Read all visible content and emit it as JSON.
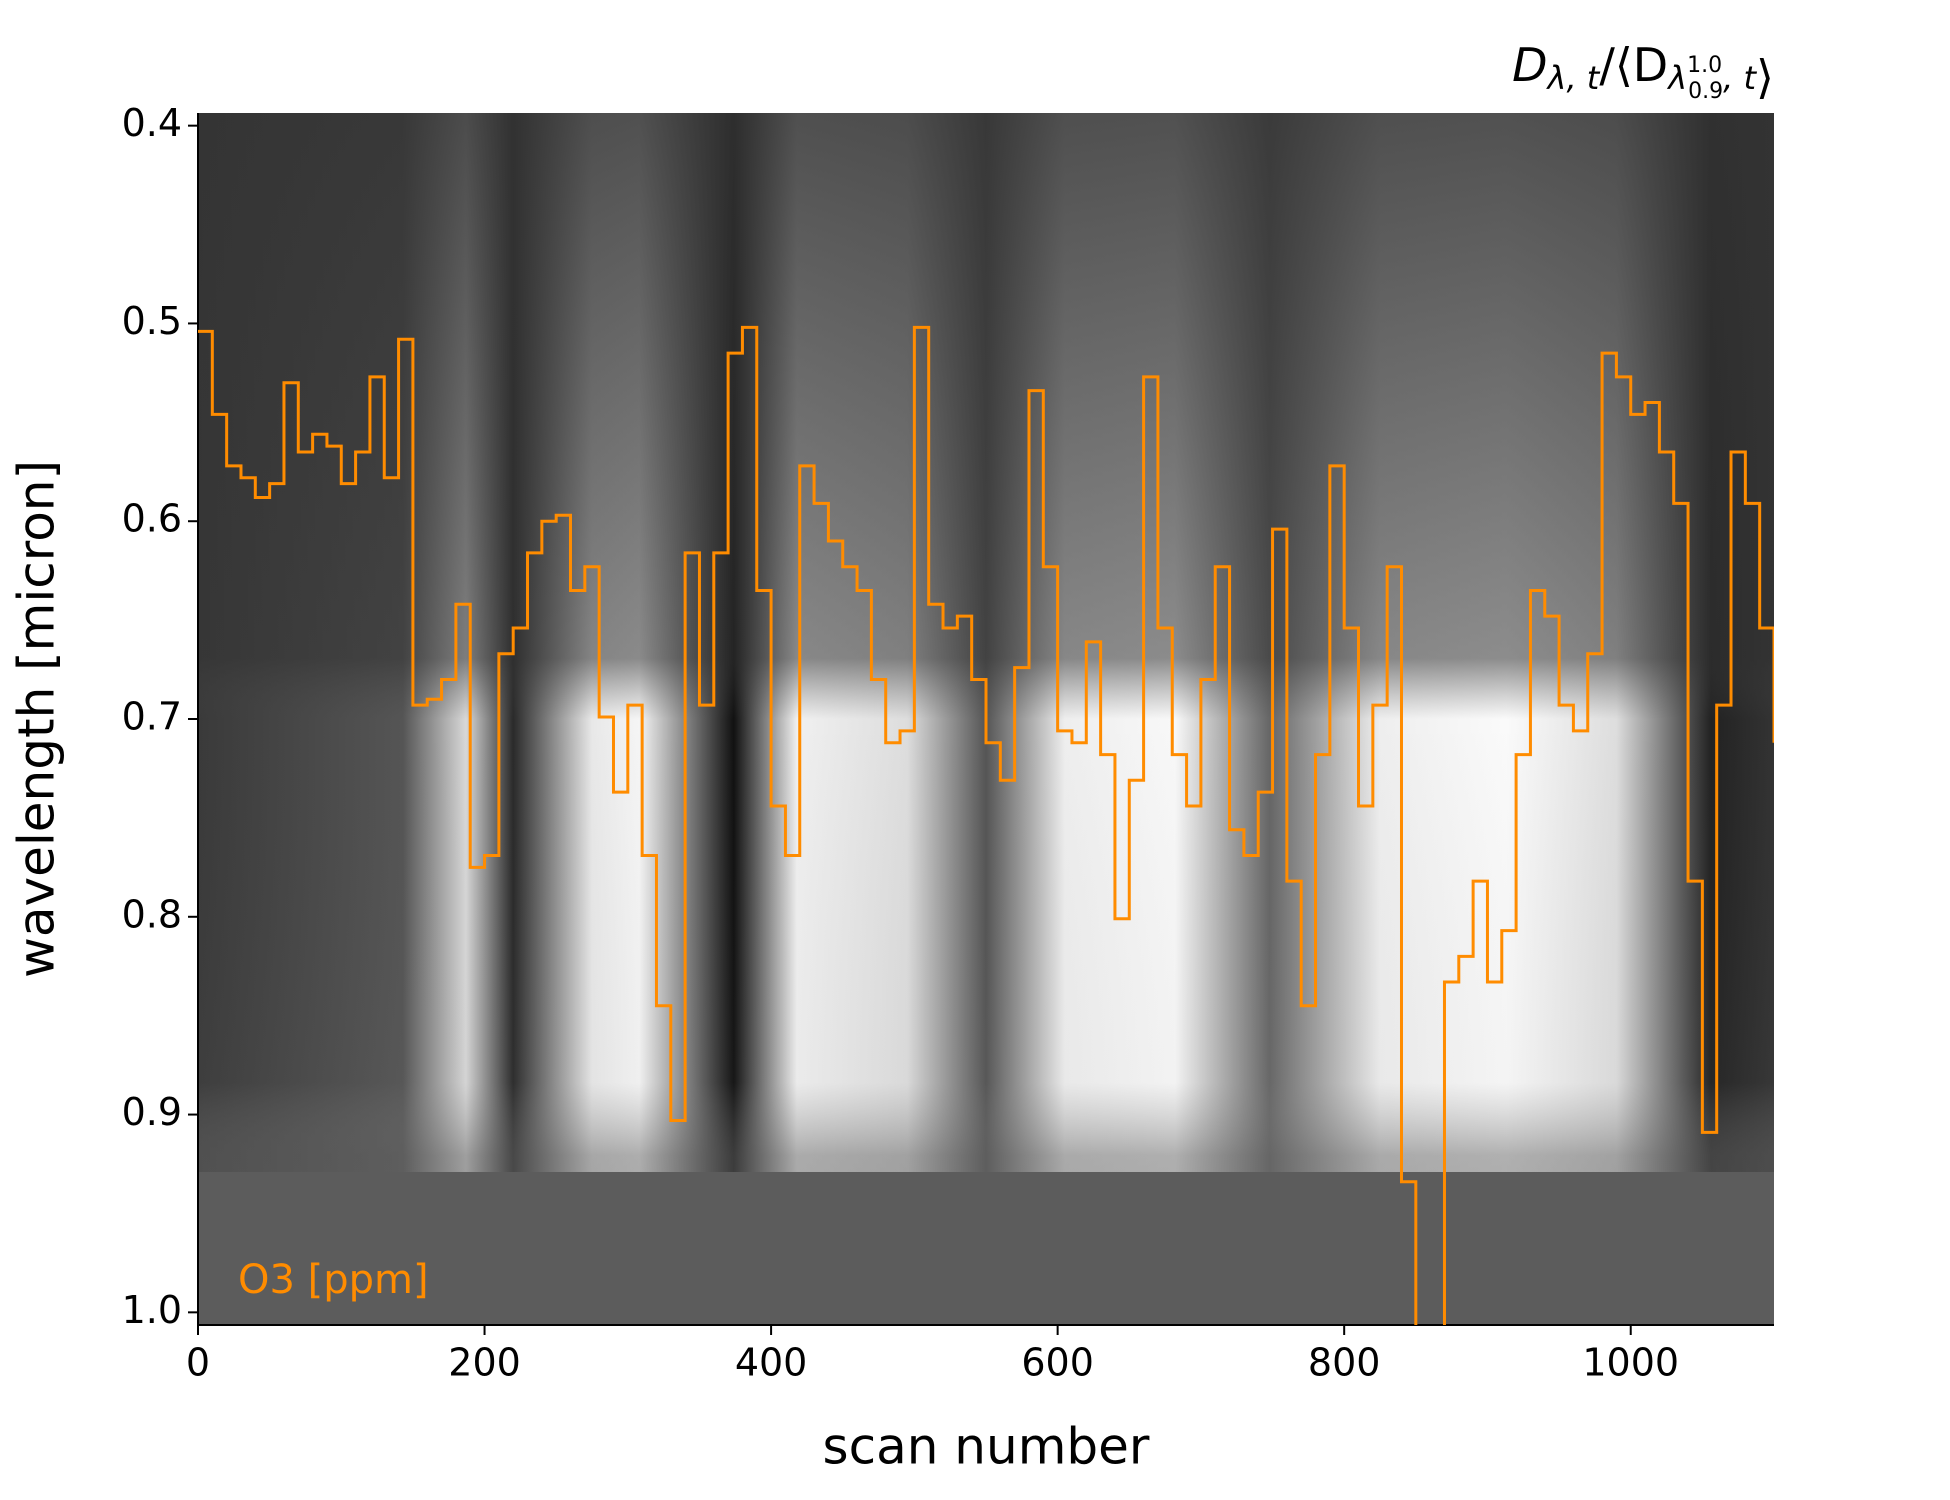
{
  "chart_data": {
    "type": "step",
    "title": [
      "D",
      "λ, t",
      "/⟨D",
      "λ",
      "1.0",
      "0.9",
      ", t",
      "⟩"
    ],
    "xlabel": "scan number",
    "ylabel": "wavelength [micron]",
    "annotation": "O3 [ppm]",
    "xlim": [
      0,
      1100
    ],
    "xticks": [
      0,
      200,
      400,
      600,
      800,
      1000
    ],
    "ylim": [
      0.3936,
      1.0064
    ],
    "y_inverted": true,
    "yticks": [
      0.4,
      0.5,
      0.6,
      0.7,
      0.8,
      0.9,
      {
        "value": 1.0,
        "label": "1.0"
      }
    ],
    "series": [
      {
        "name": "O3 [ppm]",
        "color": "#ff8c00",
        "x": [
          0,
          10,
          20,
          30,
          40,
          50,
          60,
          70,
          80,
          90,
          100,
          110,
          120,
          130,
          140,
          150,
          160,
          170,
          180,
          190,
          200,
          210,
          220,
          230,
          240,
          250,
          260,
          270,
          280,
          290,
          300,
          310,
          320,
          330,
          340,
          350,
          360,
          370,
          380,
          390,
          400,
          410,
          420,
          430,
          440,
          450,
          460,
          470,
          480,
          490,
          500,
          510,
          520,
          530,
          540,
          550,
          560,
          570,
          580,
          590,
          600,
          610,
          620,
          630,
          640,
          650,
          660,
          670,
          680,
          690,
          700,
          710,
          720,
          730,
          740,
          750,
          760,
          770,
          780,
          790,
          800,
          810,
          820,
          830,
          840,
          850,
          860,
          870,
          880,
          890,
          900,
          910,
          920,
          930,
          940,
          950,
          960,
          970,
          980,
          990,
          1000,
          1010,
          1020,
          1030,
          1040,
          1050,
          1060,
          1070,
          1080,
          1090,
          1100
        ],
        "values": [
          0.504,
          0.546,
          0.572,
          0.578,
          0.588,
          0.581,
          0.53,
          0.565,
          0.556,
          0.562,
          0.581,
          0.565,
          0.527,
          0.578,
          0.508,
          0.693,
          0.69,
          0.68,
          0.642,
          0.775,
          0.769,
          0.667,
          0.654,
          0.616,
          0.6,
          0.597,
          0.635,
          0.623,
          0.699,
          0.737,
          0.693,
          0.769,
          0.845,
          0.903,
          0.616,
          0.693,
          0.616,
          0.515,
          0.502,
          0.635,
          0.744,
          0.769,
          0.572,
          0.591,
          0.61,
          0.623,
          0.635,
          0.68,
          0.712,
          0.706,
          0.502,
          0.642,
          0.654,
          0.648,
          0.68,
          0.712,
          0.731,
          0.674,
          0.534,
          0.623,
          0.706,
          0.712,
          0.661,
          0.718,
          0.801,
          0.731,
          0.527,
          0.654,
          0.718,
          0.744,
          0.68,
          0.623,
          0.756,
          0.769,
          0.737,
          0.604,
          0.782,
          0.845,
          0.718,
          0.572,
          0.654,
          0.744,
          0.693,
          0.623,
          0.934,
          1.03,
          1.03,
          0.833,
          0.82,
          0.782,
          0.833,
          0.807,
          0.718,
          0.635,
          0.648,
          0.693,
          0.706,
          0.667,
          0.515,
          0.527,
          0.546,
          0.54,
          0.565,
          0.591,
          0.782,
          0.909,
          0.693,
          0.565,
          0.591,
          0.654,
          0.712
        ]
      }
    ]
  }
}
